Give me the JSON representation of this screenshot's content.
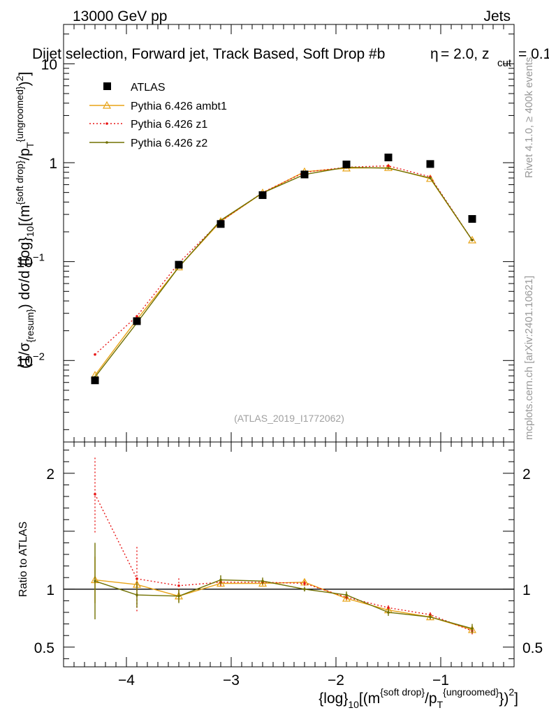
{
  "header": {
    "energy_label": "13000 GeV pp",
    "category_label": "Jets",
    "title": "Dijet selection, Forward jet, Track Based, Soft Drop #b",
    "title_suffix": "= 2.0, z",
    "title_cut_subscript": "cut",
    "title_tail": "= 0.1",
    "title_eta": "η",
    "watermark": "(ATLAS_2019_I1772062)"
  },
  "side": {
    "rivet": "Rivet 4.1.0, ≥ 400k events",
    "mcplots": "mcplots.cern.ch [arXiv:2401.10621]"
  },
  "axes": {
    "ylabel_main": "(1/σ{resum}) dσ/d {log}10[(m{soft drop}/pT{ungroomed})2]",
    "ylabel_ratio": "Ratio to ATLAS",
    "xlabel": "{log}10[(m{soft drop}/pT{ungroomed})2]"
  },
  "chart_data": {
    "type": "line",
    "yscale_main": "log",
    "xlim": [
      -4.6,
      -0.3
    ],
    "ylim_main": [
      0.0015,
      25
    ],
    "ylim_ratio": [
      0.33,
      2.27
    ],
    "x_ticks": [
      -4,
      -3,
      -2,
      -1
    ],
    "x_tick_labels": [
      "−4",
      "−3",
      "−2",
      "−1"
    ],
    "y_main_ticks": [
      {
        "value": 10,
        "base": "10",
        "exp": ""
      },
      {
        "value": 1,
        "base": "1",
        "exp": ""
      },
      {
        "value": 0.1,
        "base": "10",
        "exp": "−1"
      },
      {
        "value": 0.01,
        "base": "10",
        "exp": "−2"
      }
    ],
    "y_ratio_ticks": [
      {
        "value": 2,
        "label": "2"
      },
      {
        "value": 1,
        "label": "1"
      },
      {
        "value": 0.5,
        "label": "0.5"
      }
    ],
    "x": [
      -4.3,
      -3.9,
      -3.5,
      -3.1,
      -2.7,
      -2.3,
      -1.9,
      -1.5,
      -1.1,
      -0.7
    ],
    "reference": {
      "name": "ATLAS",
      "values": [
        0.0063,
        0.025,
        0.093,
        0.24,
        0.47,
        0.76,
        0.96,
        1.13,
        0.97,
        0.27
      ]
    },
    "series": [
      {
        "name": "Pythia 6.426 ambt1",
        "color": "#e8a317",
        "style": "solid",
        "marker": "triangle",
        "values": [
          0.0071,
          0.026,
          0.088,
          0.255,
          0.495,
          0.81,
          0.88,
          0.89,
          0.69,
          0.165
        ],
        "ratio": [
          1.08,
          1.04,
          0.94,
          1.05,
          1.05,
          1.06,
          0.92,
          0.82,
          0.76,
          0.65
        ],
        "ratio_err": [
          0.2,
          0.06,
          0.05,
          0.03,
          0.02,
          0.02,
          0.02,
          0.02,
          0.02,
          0.03
        ]
      },
      {
        "name": "Pythia 6.426 z1",
        "color": "#e81717",
        "style": "dotted",
        "marker": "dot",
        "values": [
          0.0115,
          0.028,
          0.097,
          0.255,
          0.5,
          0.8,
          0.9,
          0.93,
          0.72,
          0.165
        ],
        "ratio": [
          1.82,
          1.09,
          1.03,
          1.06,
          1.06,
          1.05,
          0.93,
          0.84,
          0.78,
          0.64
        ],
        "ratio_err": [
          0.33,
          0.28,
          0.07,
          0.03,
          0.02,
          0.02,
          0.02,
          0.02,
          0.02,
          0.03
        ]
      },
      {
        "name": "Pythia 6.426 z2",
        "color": "#707000",
        "style": "solid",
        "marker": "dot",
        "values": [
          0.0068,
          0.024,
          0.088,
          0.262,
          0.495,
          0.76,
          0.9,
          0.88,
          0.7,
          0.165
        ],
        "ratio": [
          1.07,
          0.95,
          0.94,
          1.08,
          1.07,
          1.0,
          0.95,
          0.8,
          0.76,
          0.66
        ],
        "ratio_err": [
          0.33,
          0.11,
          0.06,
          0.04,
          0.03,
          0.02,
          0.03,
          0.03,
          0.02,
          0.04
        ]
      }
    ]
  }
}
